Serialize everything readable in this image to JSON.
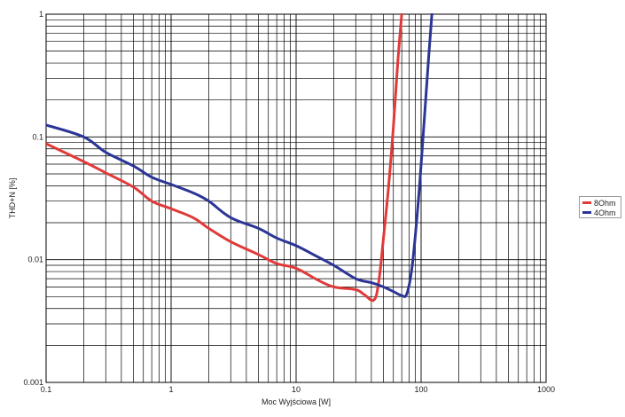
{
  "chart_data": {
    "type": "line",
    "xscale": "log",
    "yscale": "log",
    "xlabel": "Moc Wyjściowa [W]",
    "ylabel": "THD+N [%]",
    "xlim": [
      0.1,
      1000
    ],
    "ylim": [
      0.001,
      1
    ],
    "x_ticks": [
      "0.1",
      "1",
      "10",
      "100",
      "1000"
    ],
    "y_ticks": [
      "0.001",
      "0.01",
      "0.1",
      "1"
    ],
    "grid": true,
    "legend_position": "right",
    "series": [
      {
        "name": "8Ohm",
        "color": "#e03a3a",
        "points": [
          [
            0.1,
            0.088
          ],
          [
            0.2,
            0.063
          ],
          [
            0.3,
            0.051
          ],
          [
            0.5,
            0.039
          ],
          [
            0.7,
            0.03
          ],
          [
            1,
            0.026
          ],
          [
            1.5,
            0.022
          ],
          [
            2,
            0.018
          ],
          [
            3,
            0.014
          ],
          [
            5,
            0.011
          ],
          [
            7,
            0.0093
          ],
          [
            10,
            0.0085
          ],
          [
            15,
            0.0068
          ],
          [
            20,
            0.006
          ],
          [
            30,
            0.0057
          ],
          [
            35,
            0.0052
          ],
          [
            42,
            0.0047
          ],
          [
            46,
            0.0068
          ],
          [
            50,
            0.015
          ],
          [
            55,
            0.04
          ],
          [
            60,
            0.12
          ],
          [
            65,
            0.4
          ],
          [
            70,
            1.0
          ]
        ]
      },
      {
        "name": "4Ohm",
        "color": "#2b3595",
        "points": [
          [
            0.1,
            0.125
          ],
          [
            0.2,
            0.1
          ],
          [
            0.3,
            0.075
          ],
          [
            0.5,
            0.058
          ],
          [
            0.7,
            0.047
          ],
          [
            1,
            0.041
          ],
          [
            1.5,
            0.035
          ],
          [
            2,
            0.03
          ],
          [
            3,
            0.022
          ],
          [
            5,
            0.018
          ],
          [
            7,
            0.015
          ],
          [
            10,
            0.013
          ],
          [
            15,
            0.0105
          ],
          [
            20,
            0.009
          ],
          [
            30,
            0.007
          ],
          [
            40,
            0.0065
          ],
          [
            50,
            0.006
          ],
          [
            60,
            0.0055
          ],
          [
            70,
            0.0051
          ],
          [
            77,
            0.0053
          ],
          [
            85,
            0.009
          ],
          [
            95,
            0.03
          ],
          [
            105,
            0.12
          ],
          [
            115,
            0.45
          ],
          [
            122,
            1.0
          ]
        ]
      }
    ]
  }
}
